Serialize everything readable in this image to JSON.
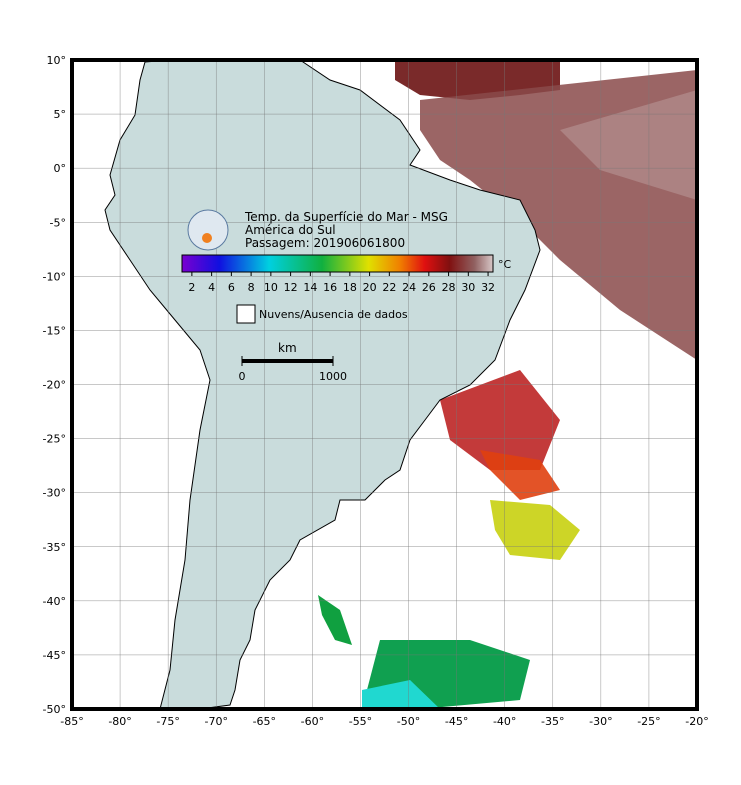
{
  "map": {
    "title": "Temp. da Superfície do Mar - MSG",
    "subtitle": "América do Sul",
    "pass": "Passagem: 201906061800",
    "xlim": [
      -85,
      -20
    ],
    "ylim": [
      -50,
      10
    ],
    "xticks": [
      {
        "value": -85,
        "label": "-85°"
      },
      {
        "value": -80,
        "label": "-80°"
      },
      {
        "value": -75,
        "label": "-75°"
      },
      {
        "value": -70,
        "label": "-70°"
      },
      {
        "value": -65,
        "label": "-65°"
      },
      {
        "value": -60,
        "label": "-60°"
      },
      {
        "value": -55,
        "label": "-55°"
      },
      {
        "value": -50,
        "label": "-50°"
      },
      {
        "value": -45,
        "label": "-45°"
      },
      {
        "value": -40,
        "label": "-40°"
      },
      {
        "value": -35,
        "label": "-35°"
      },
      {
        "value": -30,
        "label": "-30°"
      },
      {
        "value": -25,
        "label": "-25°"
      },
      {
        "value": -20,
        "label": "-20°"
      }
    ],
    "yticks": [
      {
        "value": 10,
        "label": "10°"
      },
      {
        "value": 5,
        "label": "5°"
      },
      {
        "value": 0,
        "label": "0°"
      },
      {
        "value": -5,
        "label": "-5°"
      },
      {
        "value": -10,
        "label": "-10°"
      },
      {
        "value": -15,
        "label": "-15°"
      },
      {
        "value": -20,
        "label": "-20°"
      },
      {
        "value": -25,
        "label": "-25°"
      },
      {
        "value": -30,
        "label": "-30°"
      },
      {
        "value": -35,
        "label": "-35°"
      },
      {
        "value": -40,
        "label": "-40°"
      },
      {
        "value": -45,
        "label": "-45°"
      },
      {
        "value": -50,
        "label": "-50°"
      }
    ],
    "colorbar": {
      "lim": [
        1,
        32.5
      ],
      "ticks": [
        2,
        4,
        6,
        8,
        10,
        12,
        14,
        16,
        18,
        20,
        22,
        24,
        26,
        28,
        30,
        32
      ],
      "unit": "°C"
    },
    "legend": "Nuvens/Ausencia de dados",
    "scale_bar": {
      "unit": "km",
      "ticks": [
        0,
        1000
      ]
    }
  }
}
